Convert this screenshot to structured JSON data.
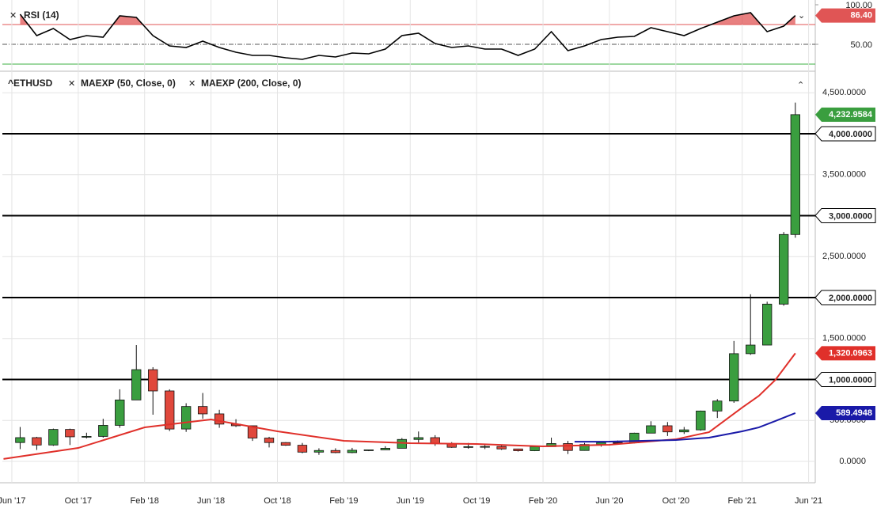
{
  "chart_data": [
    {
      "type": "line",
      "x": [
        0.5,
        1.5,
        2.5,
        3.5,
        4.5,
        5.5,
        6.5,
        7.5,
        8.5,
        9.5,
        10.5,
        11.5,
        12.5,
        13.5,
        14.5,
        15.5,
        16.5,
        17.5,
        18.5,
        19.5,
        20.5,
        21.5,
        22.5,
        23.5,
        24.5,
        25.5,
        26.5,
        27.5,
        28.5,
        29.5,
        30.5,
        31.5,
        32.5,
        33.5,
        34.5,
        35.5,
        36.5,
        37.5,
        38.5,
        39.5,
        40.5,
        41.5,
        42.5,
        43.5,
        44.5,
        45.5,
        46.5,
        47.2
      ],
      "series": [
        {
          "name": "RSI (14)",
          "color": "#000000",
          "values": [
            88,
            61,
            70,
            56,
            61,
            59,
            86,
            84,
            61,
            48,
            46,
            54,
            46,
            40,
            36,
            36,
            33,
            31,
            36,
            34,
            39,
            38,
            44,
            61,
            64,
            51,
            46,
            48,
            44,
            44,
            36,
            44,
            66,
            42,
            48,
            56,
            59,
            60,
            71,
            66,
            61,
            70,
            78,
            86,
            90,
            66,
            73,
            86.4
          ],
          "last_label": "86.40"
        }
      ],
      "xlim": [
        -0.57,
        48.4
      ],
      "ylim": [
        18,
        103
      ],
      "yticks": [
        {
          "value": 100,
          "label": "100.00"
        },
        {
          "value": 50,
          "label": "50.00"
        }
      ],
      "upper_level": 75,
      "lower_level": 25,
      "mid_level": 50,
      "upper_color": "#e05555",
      "lower_color": "#3cb043"
    },
    {
      "type": "candlestick",
      "name": "^ETHUSD",
      "x": [
        0.5,
        1.5,
        2.5,
        3.5,
        4.5,
        5.5,
        6.5,
        7.5,
        8.5,
        9.5,
        10.5,
        11.5,
        12.5,
        13.5,
        14.5,
        15.5,
        16.5,
        17.5,
        18.5,
        19.5,
        20.5,
        21.5,
        22.5,
        23.5,
        24.5,
        25.5,
        26.5,
        27.5,
        28.5,
        29.5,
        30.5,
        31.5,
        32.5,
        33.5,
        34.5,
        35.5,
        36.5,
        37.5,
        38.5,
        39.5,
        40.5,
        41.5,
        42.5,
        43.5,
        44.5,
        45.5,
        46.5,
        47.2
      ],
      "open": [
        230,
        290,
        200,
        390,
        300,
        305,
        440,
        750,
        1120,
        860,
        395,
        670,
        580,
        455,
        435,
        285,
        230,
        197,
        113,
        133,
        107,
        136,
        141,
        160,
        268,
        290,
        218,
        172,
        180,
        182,
        152,
        130,
        180,
        218,
        133,
        206,
        231,
        226,
        345,
        435,
        360,
        385,
        615,
        737,
        1315,
        1420,
        1920,
        2770
      ],
      "high": [
        420,
        300,
        400,
        400,
        350,
        520,
        880,
        1420,
        1150,
        880,
        710,
        835,
        630,
        515,
        435,
        300,
        235,
        225,
        160,
        160,
        165,
        145,
        185,
        285,
        365,
        320,
        235,
        225,
        200,
        195,
        155,
        185,
        290,
        250,
        225,
        245,
        255,
        350,
        490,
        480,
        420,
        620,
        760,
        1470,
        2040,
        1950,
        2800,
        4380
      ],
      "low": [
        150,
        140,
        190,
        200,
        280,
        290,
        410,
        750,
        570,
        370,
        360,
        520,
        410,
        420,
        250,
        170,
        190,
        100,
        80,
        100,
        100,
        125,
        140,
        160,
        230,
        190,
        165,
        155,
        150,
        140,
        120,
        125,
        180,
        90,
        130,
        180,
        220,
        220,
        345,
        310,
        335,
        375,
        530,
        715,
        1300,
        1450,
        1900,
        2730
      ],
      "close": [
        290,
        200,
        390,
        300,
        305,
        440,
        750,
        1120,
        860,
        395,
        670,
        580,
        455,
        435,
        285,
        230,
        197,
        113,
        133,
        107,
        136,
        141,
        160,
        268,
        290,
        218,
        172,
        180,
        182,
        152,
        130,
        180,
        218,
        133,
        206,
        231,
        226,
        345,
        435,
        360,
        385,
        615,
        737,
        1315,
        1420,
        1920,
        2770,
        4232.9584
      ],
      "last_label": "4,232.9584",
      "up_color": "#3a9e3f",
      "down_color": "#e0483c",
      "series": [
        {
          "name": "MAEXP (50, Close, 0)",
          "color": "#e0302a",
          "x": [
            -0.5,
            4,
            8,
            12,
            16,
            20,
            24,
            28,
            32,
            36,
            40,
            42,
            44,
            45,
            46,
            47.2
          ],
          "values": [
            30,
            164,
            415,
            512,
            367,
            251,
            222,
            212,
            183,
            203,
            270,
            357,
            657,
            800,
            995,
            1320.0963
          ],
          "last_label": "1,320.0963"
        },
        {
          "name": "MAEXP (200, Close, 0)",
          "color": "#1a1aa8",
          "x": [
            33.9,
            36,
            40,
            42,
            44,
            45,
            46,
            47.2
          ],
          "values": [
            240,
            241,
            261,
            290,
            367,
            415,
            493,
            589.4948
          ],
          "last_label": "589.4948"
        }
      ],
      "hlines": [
        {
          "value": 1000,
          "label": "1,000.0000"
        },
        {
          "value": 2000,
          "label": "2,000.0000"
        },
        {
          "value": 3000,
          "label": "3,000.0000"
        },
        {
          "value": 4000,
          "label": "4,000.0000"
        }
      ],
      "xlim": [
        -0.57,
        48.4
      ],
      "ylim": [
        -87,
        4734
      ],
      "yticks": [
        {
          "value": 0,
          "label": "0.0000"
        },
        {
          "value": 500,
          "label": "500.0000"
        },
        {
          "value": 1000,
          "label": "1,000.0000"
        },
        {
          "value": 1500,
          "label": "1,500.0000"
        },
        {
          "value": 2000,
          "label": "2,000.0000"
        },
        {
          "value": 2500,
          "label": "2,500.0000"
        },
        {
          "value": 3000,
          "label": "3,000.0000"
        },
        {
          "value": 3500,
          "label": "3,500.0000"
        },
        {
          "value": 4000,
          "label": "4,000.0000"
        },
        {
          "value": 4500,
          "label": "4,500.0000"
        }
      ],
      "xticks": [
        {
          "value": 0,
          "label": "Jun '17"
        },
        {
          "value": 4,
          "label": "Oct '17"
        },
        {
          "value": 8,
          "label": "Feb '18"
        },
        {
          "value": 12,
          "label": "Jun '18"
        },
        {
          "value": 16,
          "label": "Oct '18"
        },
        {
          "value": 20,
          "label": "Feb '19"
        },
        {
          "value": 24,
          "label": "Jun '19"
        },
        {
          "value": 28,
          "label": "Oct '19"
        },
        {
          "value": 32,
          "label": "Feb '20"
        },
        {
          "value": 36,
          "label": "Jun '20"
        },
        {
          "value": 40,
          "label": "Oct '20"
        },
        {
          "value": 44,
          "label": "Feb '21"
        },
        {
          "value": 48,
          "label": "Jun '21"
        }
      ],
      "grid": true
    }
  ]
}
